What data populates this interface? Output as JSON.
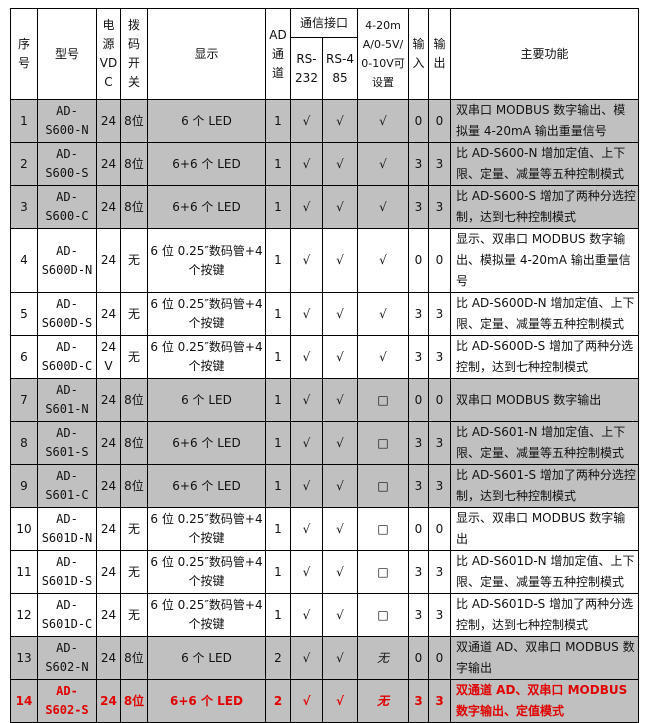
{
  "headers": {
    "no": "序号",
    "model": "型号",
    "power": "电源VDC",
    "dip": "拨码开关",
    "display": "显示",
    "ad": "AD通道",
    "comm": "通信接口",
    "rs232": "RS-232",
    "rs485": "RS-485",
    "analog": "4-20mA/0-5V/0-10V可设置",
    "in": "输入",
    "out": "输出",
    "func": "主要功能"
  },
  "highlight_color": "#e00000",
  "gray_color": "#c0c0c0",
  "rows": [
    {
      "no": "1",
      "model": "AD-S600-N",
      "power": "24",
      "dip": "8位",
      "display": "6 个 LED",
      "ad": "1",
      "rs232": "√",
      "rs485": "√",
      "analog": "√",
      "in": "0",
      "out": "0",
      "func": "双串口 MODBUS 数字输出、模拟量 4-20mA 输出重量信号",
      "shade": "gray"
    },
    {
      "no": "2",
      "model": "AD-S600-S",
      "power": "24",
      "dip": "8位",
      "display": "6+6 个 LED",
      "ad": "1",
      "rs232": "√",
      "rs485": "√",
      "analog": "√",
      "in": "3",
      "out": "3",
      "func": "比 AD-S600-N 增加定值、上下限、定量、减量等五种控制模式",
      "shade": "gray"
    },
    {
      "no": "3",
      "model": "AD-S600-C",
      "power": "24",
      "dip": "8位",
      "display": "6+6 个 LED",
      "ad": "1",
      "rs232": "√",
      "rs485": "√",
      "analog": "√",
      "in": "3",
      "out": "3",
      "func": "比 AD-S600-S 增加了两种分选控制，达到七种控制模式",
      "shade": "gray"
    },
    {
      "no": "4",
      "model": "AD-S600D-N",
      "power": "24",
      "dip": "无",
      "display": "6 位 0.25″数码管+4 个按键",
      "ad": "1",
      "rs232": "√",
      "rs485": "√",
      "analog": "√",
      "in": "0",
      "out": "0",
      "func": "显示、双串口 MODBUS 数字输出、模拟量 4-20mA 输出重量信号",
      "shade": "white"
    },
    {
      "no": "5",
      "model": "AD-S600D-S",
      "power": "24",
      "dip": "无",
      "display": "6 位 0.25″数码管+4 个按键",
      "ad": "1",
      "rs232": "√",
      "rs485": "√",
      "analog": "√",
      "in": "3",
      "out": "3",
      "func": "比 AD-S600D-N 增加定值、上下限、定量、减量等五种控制模式",
      "shade": "white"
    },
    {
      "no": "6",
      "model": "AD-S600D-C",
      "power": "24V",
      "dip": "无",
      "display": "6 位 0.25″数码管+4 个按键",
      "ad": "1",
      "rs232": "√",
      "rs485": "√",
      "analog": "√",
      "in": "3",
      "out": "3",
      "func": "比 AD-S600D-S 增加了两种分选控制，达到七种控制模式",
      "shade": "white"
    },
    {
      "no": "7",
      "model": "AD-S601-N",
      "power": "24",
      "dip": "8位",
      "display": "6 个 LED",
      "ad": "1",
      "rs232": "√",
      "rs485": "√",
      "analog": "□",
      "in": "0",
      "out": "0",
      "func": "双串口 MODBUS 数字输出",
      "shade": "gray"
    },
    {
      "no": "8",
      "model": "AD-S601-S",
      "power": "24",
      "dip": "8位",
      "display": "6+6 个 LED",
      "ad": "1",
      "rs232": "√",
      "rs485": "√",
      "analog": "□",
      "in": "3",
      "out": "3",
      "func": "比 AD-S601-N 增加定值、上下限、定量、减量等五种控制模式",
      "shade": "gray"
    },
    {
      "no": "9",
      "model": "AD-S601-C",
      "power": "24",
      "dip": "8位",
      "display": "6+6 个 LED",
      "ad": "1",
      "rs232": "√",
      "rs485": "√",
      "analog": "□",
      "in": "3",
      "out": "3",
      "func": "比 AD-S601-S 增加了两种分选控制，达到七种控制模式",
      "shade": "gray"
    },
    {
      "no": "10",
      "model": "AD-S601D-N",
      "power": "24",
      "dip": "无",
      "display": "6 位 0.25″数码管+4 个按键",
      "ad": "1",
      "rs232": "√",
      "rs485": "√",
      "analog": "□",
      "in": "0",
      "out": "0",
      "func": "显示、双串口 MODBUS 数字输出",
      "shade": "white"
    },
    {
      "no": "11",
      "model": "AD-S601D-S",
      "power": "24",
      "dip": "无",
      "display": "6 位 0.25″数码管+4 个按键",
      "ad": "1",
      "rs232": "√",
      "rs485": "√",
      "analog": "□",
      "in": "3",
      "out": "3",
      "func": "比 AD-S601D-N 增加定值、上下限、定量、减量等五种控制模式",
      "shade": "white"
    },
    {
      "no": "12",
      "model": "AD-S601D-C",
      "power": "24",
      "dip": "无",
      "display": "6 位 0.25″数码管+4 个按键",
      "ad": "1",
      "rs232": "√",
      "rs485": "√",
      "analog": "□",
      "in": "3",
      "out": "3",
      "func": "比 AD-S601D-S 增加了两种分选控制，达到七种控制模式",
      "shade": "white"
    },
    {
      "no": "13",
      "model": "AD-S602-N",
      "power": "24",
      "dip": "8位",
      "display": "6 个 LED",
      "ad": "2",
      "rs232": "√",
      "rs485": "√",
      "analog": "无",
      "in": "0",
      "out": "0",
      "func": "双通道 AD、双串口 MODBUS 数字输出",
      "shade": "gray"
    },
    {
      "no": "14",
      "model": "AD-S602-S",
      "power": "24",
      "dip": "8位",
      "display": "6+6 个 LED",
      "ad": "2",
      "rs232": "√",
      "rs485": "√",
      "analog": "无",
      "in": "3",
      "out": "3",
      "func": "双通道 AD、双串口 MODBUS 数字输出、定值模式",
      "shade": "gray",
      "highlight": true
    }
  ]
}
